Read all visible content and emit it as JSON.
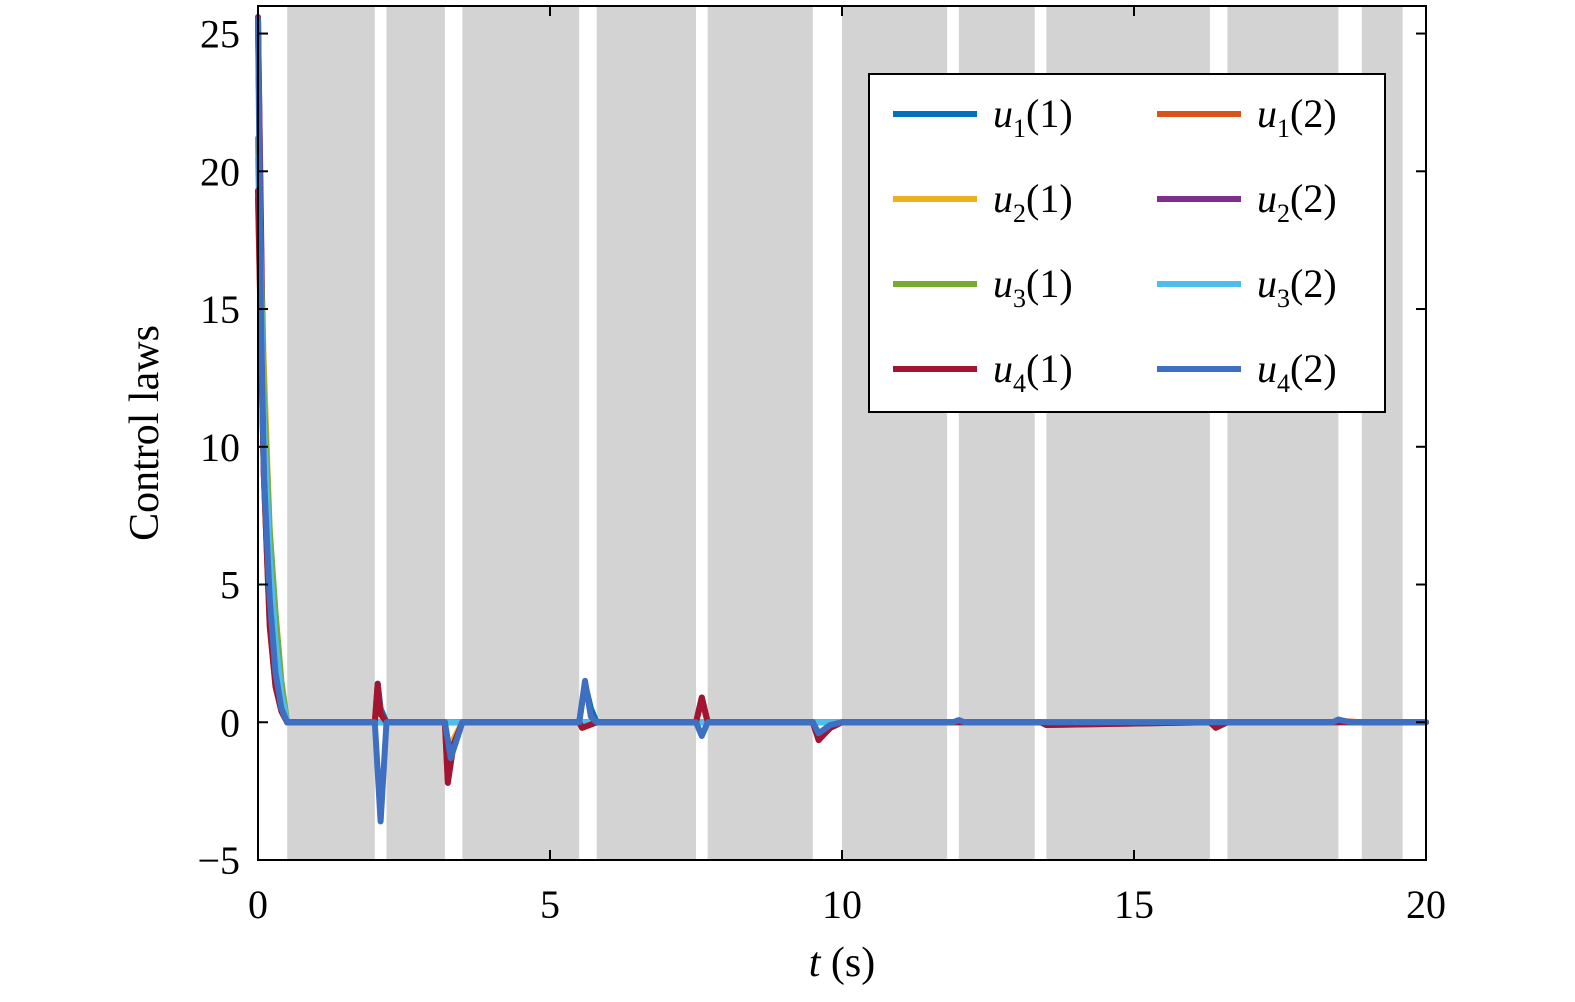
{
  "chart_data": {
    "type": "line",
    "xlabel_var": "t",
    "xlabel_unit": "(s)",
    "ylabel": "Control laws",
    "xlim": [
      0,
      20
    ],
    "ylim": [
      -5,
      26
    ],
    "xticks": [
      0,
      5,
      10,
      15,
      20
    ],
    "yticks": [
      -5,
      0,
      5,
      10,
      15,
      20,
      25
    ],
    "x_tick_labels": [
      "0",
      "5",
      "10",
      "15",
      "20"
    ],
    "y_tick_labels": [
      "−5",
      "0",
      "5",
      "10",
      "15",
      "20",
      "25"
    ],
    "grid": false,
    "legend_position": "top-right",
    "shaded_intervals": [
      [
        0.5,
        2.0
      ],
      [
        2.2,
        3.2
      ],
      [
        3.5,
        5.5
      ],
      [
        5.8,
        7.5
      ],
      [
        7.7,
        9.5
      ],
      [
        10.0,
        11.8
      ],
      [
        12.0,
        13.3
      ],
      [
        13.5,
        16.3
      ],
      [
        16.6,
        18.5
      ],
      [
        18.9,
        19.6
      ]
    ],
    "shade_color": "#d3d3d3",
    "series": [
      {
        "name_var": "u",
        "name_sub": "1",
        "name_arg": "(1)",
        "color": "#0072BD",
        "x": [
          0,
          0.1,
          0.2,
          0.3,
          0.4,
          0.5,
          2.0,
          2.05,
          2.1,
          2.2,
          3.2,
          3.5,
          5.5,
          5.6,
          5.7,
          5.8,
          7.5,
          7.6,
          7.7,
          9.5,
          9.6,
          9.8,
          10.0,
          20
        ],
        "y": [
          25.5,
          10,
          4,
          1.5,
          0.5,
          0,
          0,
          1.4,
          0.5,
          0,
          0,
          0,
          0,
          1.4,
          0.5,
          0,
          0,
          0.9,
          0,
          0,
          -0.5,
          -0.2,
          0,
          0
        ]
      },
      {
        "name_var": "u",
        "name_sub": "1",
        "name_arg": "(2)",
        "color": "#D95319",
        "x": [
          0,
          0.1,
          0.2,
          0.3,
          0.4,
          0.5,
          2.0,
          2.05,
          2.1,
          2.2,
          3.2,
          3.25,
          3.35,
          3.5,
          5.5,
          5.55,
          5.8,
          7.5,
          7.6,
          7.7,
          9.5,
          9.6,
          9.8,
          10.0,
          13.4,
          13.5,
          16.3,
          16.4,
          16.6,
          18.4,
          18.5,
          18.9,
          20
        ],
        "y": [
          19,
          9,
          3.5,
          1.3,
          0.4,
          0,
          0,
          1.3,
          0.3,
          0,
          0,
          -2.1,
          -0.8,
          0,
          0,
          -0.2,
          0,
          0,
          0.8,
          0,
          0,
          -0.6,
          -0.2,
          0,
          0,
          -0.1,
          0,
          -0.15,
          0,
          0,
          0.05,
          0,
          0
        ]
      },
      {
        "name_var": "u",
        "name_sub": "2",
        "name_arg": "(1)",
        "color": "#EDB120",
        "x": [
          0,
          0.1,
          0.2,
          0.3,
          0.4,
          0.5,
          2.0,
          2.05,
          2.1,
          2.2,
          3.2,
          3.25,
          3.35,
          3.5,
          20
        ],
        "y": [
          21,
          13,
          7,
          3.5,
          1.2,
          0,
          0,
          1.3,
          0.3,
          0,
          0,
          -1.8,
          -0.6,
          0,
          0
        ]
      },
      {
        "name_var": "u",
        "name_sub": "2",
        "name_arg": "(2)",
        "color": "#7E2F8E",
        "x": [
          0,
          0.1,
          0.2,
          0.3,
          0.4,
          0.5,
          20
        ],
        "y": [
          25.6,
          11,
          5,
          2,
          0.6,
          0,
          0
        ]
      },
      {
        "name_var": "u",
        "name_sub": "3",
        "name_arg": "(1)",
        "color": "#77AC30",
        "x": [
          0,
          0.1,
          0.2,
          0.3,
          0.4,
          0.5,
          20
        ],
        "y": [
          21.2,
          12,
          7,
          4,
          1.5,
          0,
          0
        ]
      },
      {
        "name_var": "u",
        "name_sub": "3",
        "name_arg": "(2)",
        "color": "#4DBEEE",
        "x": [
          0,
          0.1,
          0.2,
          0.3,
          0.4,
          0.5,
          20
        ],
        "y": [
          20.5,
          11,
          6,
          3,
          1,
          0,
          0
        ]
      },
      {
        "name_var": "u",
        "name_sub": "4",
        "name_arg": "(1)",
        "color": "#A2142F",
        "x": [
          0,
          0.1,
          0.2,
          0.3,
          0.4,
          0.5,
          2.0,
          2.05,
          2.1,
          2.2,
          3.2,
          3.25,
          3.35,
          3.5,
          5.5,
          5.55,
          5.8,
          7.5,
          7.6,
          7.7,
          9.5,
          9.6,
          9.8,
          10.0,
          13.4,
          13.5,
          16.3,
          16.4,
          16.6,
          20
        ],
        "y": [
          19.3,
          9,
          3.5,
          1.3,
          0.4,
          0,
          0,
          1.4,
          0.3,
          0,
          0,
          -2.2,
          -0.8,
          0,
          0,
          -0.2,
          0,
          0,
          0.9,
          0,
          0,
          -0.65,
          -0.2,
          0,
          0,
          -0.1,
          0,
          -0.2,
          0,
          0
        ]
      },
      {
        "name_var": "u",
        "name_sub": "4",
        "name_arg": "(2)",
        "color": "#3E6FC0",
        "x": [
          0,
          0.05,
          0.1,
          0.2,
          0.3,
          0.4,
          0.5,
          2.0,
          2.1,
          2.2,
          3.2,
          3.3,
          3.5,
          5.5,
          5.6,
          5.7,
          5.8,
          7.5,
          7.6,
          7.7,
          9.5,
          9.6,
          9.8,
          10.0,
          11.9,
          12.0,
          12.1,
          18.4,
          18.5,
          18.7,
          20
        ],
        "y": [
          25.5,
          15,
          9,
          4.5,
          1.8,
          0.5,
          0,
          0,
          -3.6,
          0,
          0,
          -1.3,
          0,
          0,
          1.5,
          0.2,
          0,
          0,
          -0.5,
          0,
          0,
          -0.4,
          -0.1,
          0,
          0,
          0.08,
          0,
          0,
          0.1,
          0,
          0
        ]
      }
    ]
  }
}
